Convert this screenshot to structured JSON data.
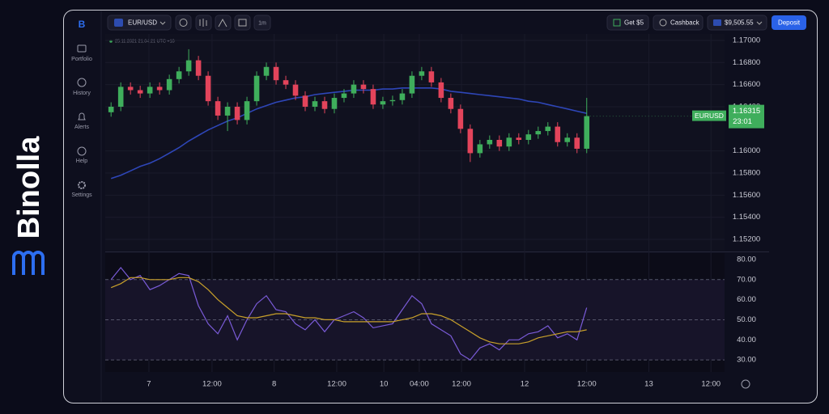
{
  "brand": {
    "name": "Binolla"
  },
  "sidebar": [
    {
      "label": "Portfolio"
    },
    {
      "label": "History"
    },
    {
      "label": "Alerts"
    },
    {
      "label": "Help"
    },
    {
      "label": "Settings"
    }
  ],
  "toolbar": {
    "pair": "EUR/USD",
    "interval": "1m",
    "bonus": "Get $5",
    "cashback": "Cashback",
    "balance": "$9,505.55",
    "deposit": "Deposit"
  },
  "chart_data": [
    {
      "type": "candlestick",
      "timestamp": "25.11.2021  21:04:21  UTC +10",
      "up_color": "#3fae5c",
      "down_color": "#e3445b",
      "open": [
        1.1635,
        1.164,
        1.1658,
        1.1655,
        1.1652,
        1.1658,
        1.1655,
        1.1665,
        1.1672,
        1.1682,
        1.1668,
        1.1645,
        1.1632,
        1.164,
        1.1628,
        1.1645,
        1.1668,
        1.1676,
        1.1664,
        1.166,
        1.165,
        1.164,
        1.1645,
        1.1638,
        1.1648,
        1.1652,
        1.166,
        1.1656,
        1.1642,
        1.1645,
        1.1646,
        1.1652,
        1.1668,
        1.1672,
        1.1662,
        1.1648,
        1.1638,
        1.162,
        1.1598,
        1.1606,
        1.161,
        1.1604,
        1.1612,
        1.161,
        1.1615,
        1.1618,
        1.1622,
        1.1608,
        1.1612,
        1.1602
      ],
      "high": [
        1.1644,
        1.1662,
        1.1662,
        1.1659,
        1.1662,
        1.1662,
        1.1669,
        1.1676,
        1.1692,
        1.1686,
        1.1672,
        1.1649,
        1.1644,
        1.1644,
        1.1649,
        1.1672,
        1.168,
        1.168,
        1.1668,
        1.1664,
        1.1654,
        1.1649,
        1.1649,
        1.1652,
        1.1656,
        1.1664,
        1.1664,
        1.166,
        1.1649,
        1.165,
        1.1656,
        1.1672,
        1.1676,
        1.1676,
        1.1666,
        1.1652,
        1.1642,
        1.1624,
        1.161,
        1.1614,
        1.1614,
        1.1616,
        1.1616,
        1.1619,
        1.1622,
        1.1626,
        1.1626,
        1.1616,
        1.1616,
        1.1648
      ],
      "low": [
        1.1631,
        1.1636,
        1.1651,
        1.1648,
        1.1648,
        1.1651,
        1.1651,
        1.1661,
        1.1668,
        1.1664,
        1.1641,
        1.1628,
        1.1618,
        1.1624,
        1.1624,
        1.1641,
        1.1664,
        1.166,
        1.1656,
        1.1646,
        1.1636,
        1.1636,
        1.1634,
        1.1634,
        1.1644,
        1.1648,
        1.1652,
        1.1638,
        1.1638,
        1.1641,
        1.1642,
        1.1648,
        1.1664,
        1.1658,
        1.1644,
        1.1634,
        1.1616,
        1.159,
        1.1594,
        1.1602,
        1.16,
        1.16,
        1.1606,
        1.1606,
        1.1611,
        1.1614,
        1.1604,
        1.1604,
        1.1598,
        1.1598
      ],
      "close": [
        1.164,
        1.1658,
        1.1655,
        1.1652,
        1.1658,
        1.1655,
        1.1665,
        1.1672,
        1.1682,
        1.1668,
        1.1645,
        1.1632,
        1.164,
        1.1628,
        1.1645,
        1.1668,
        1.1676,
        1.1664,
        1.166,
        1.165,
        1.164,
        1.1645,
        1.1638,
        1.1648,
        1.1652,
        1.166,
        1.1656,
        1.1642,
        1.1645,
        1.1646,
        1.1652,
        1.1668,
        1.1672,
        1.1662,
        1.1648,
        1.1638,
        1.162,
        1.1598,
        1.1606,
        1.161,
        1.1604,
        1.1612,
        1.161,
        1.1615,
        1.1618,
        1.1622,
        1.1608,
        1.1612,
        1.1602,
        1.16315
      ],
      "series": [
        {
          "color": "#2e46b8",
          "values": [
            1.1575,
            1.1578,
            1.1582,
            1.1586,
            1.1589,
            1.1593,
            1.1598,
            1.1603,
            1.1609,
            1.1614,
            1.1619,
            1.1623,
            1.1627,
            1.163,
            1.1634,
            1.1638,
            1.1641,
            1.1644,
            1.1646,
            1.1648,
            1.1649,
            1.1651,
            1.1652,
            1.1653,
            1.1654,
            1.1655,
            1.1655,
            1.1655,
            1.1656,
            1.1656,
            1.1657,
            1.1657,
            1.1657,
            1.1657,
            1.1656,
            1.1654,
            1.1653,
            1.1652,
            1.1651,
            1.165,
            1.1649,
            1.1648,
            1.1647,
            1.1645,
            1.1644,
            1.1642,
            1.164,
            1.1638,
            1.1636,
            1.1634
          ]
        }
      ],
      "price_label": {
        "symbol": "EURUSD",
        "price": "1.16315",
        "countdown": "23:01"
      },
      "xlim": [
        -0.6,
        63.2
      ],
      "ylim": [
        1.151,
        1.1707
      ],
      "yticks": [
        {
          "value": 1.17,
          "label": "1.17000"
        },
        {
          "value": 1.168,
          "label": "1.16800"
        },
        {
          "value": 1.166,
          "label": "1.16600"
        },
        {
          "value": 1.164,
          "label": "1.16400"
        },
        {
          "value": 1.16,
          "label": "1.16000"
        },
        {
          "value": 1.158,
          "label": "1.15800"
        },
        {
          "value": 1.156,
          "label": "1.15600"
        },
        {
          "value": 1.154,
          "label": "1.15400"
        },
        {
          "value": 1.152,
          "label": "1.15200"
        }
      ]
    },
    {
      "type": "line",
      "series": [
        {
          "color": "#7a5bd8",
          "values": [
            70,
            76,
            70,
            72,
            65,
            67,
            70,
            73,
            72,
            57,
            48,
            43,
            52,
            40,
            50,
            58,
            62,
            55,
            54,
            48,
            45,
            50,
            44,
            50,
            52,
            54,
            51,
            46,
            47,
            48,
            55,
            62,
            58,
            48,
            45,
            42,
            33,
            30,
            36,
            38,
            35,
            40,
            40,
            43,
            44,
            47,
            41,
            43,
            40,
            56
          ]
        },
        {
          "color": "#c9a12a",
          "values": [
            66,
            68,
            71,
            71,
            70,
            70,
            70,
            71,
            71,
            69,
            65,
            60,
            56,
            52,
            51,
            51,
            52,
            53,
            53,
            52,
            51,
            51,
            50,
            50,
            49,
            49,
            49,
            49,
            49,
            49,
            50,
            51,
            53,
            53,
            52,
            50,
            47,
            44,
            41,
            39,
            38,
            38,
            38,
            39,
            41,
            42,
            43,
            44,
            44,
            45
          ]
        }
      ],
      "band": [
        30,
        70
      ],
      "xlim": [
        -0.6,
        63.2
      ],
      "ylim": [
        24,
        82.4
      ],
      "yticks": [
        {
          "value": 80,
          "label": "80.00"
        },
        {
          "value": 70,
          "label": "70.00"
        },
        {
          "value": 60,
          "label": "60.00"
        },
        {
          "value": 50,
          "label": "50.00"
        },
        {
          "value": 40,
          "label": "40.00"
        },
        {
          "value": 30,
          "label": "30.00"
        }
      ],
      "xticks": [
        {
          "value": 3.9,
          "label": "7"
        },
        {
          "value": 10.4,
          "label": "12:00"
        },
        {
          "value": 16.8,
          "label": "8"
        },
        {
          "value": 23.25,
          "label": "12:00"
        },
        {
          "value": 28.1,
          "label": "10"
        },
        {
          "value": 31.75,
          "label": "04:00"
        },
        {
          "value": 36.1,
          "label": "12:00"
        },
        {
          "value": 42.6,
          "label": "12"
        },
        {
          "value": 49,
          "label": "12:00"
        },
        {
          "value": 55.4,
          "label": "13"
        },
        {
          "value": 61.8,
          "label": "12:00"
        }
      ]
    }
  ]
}
